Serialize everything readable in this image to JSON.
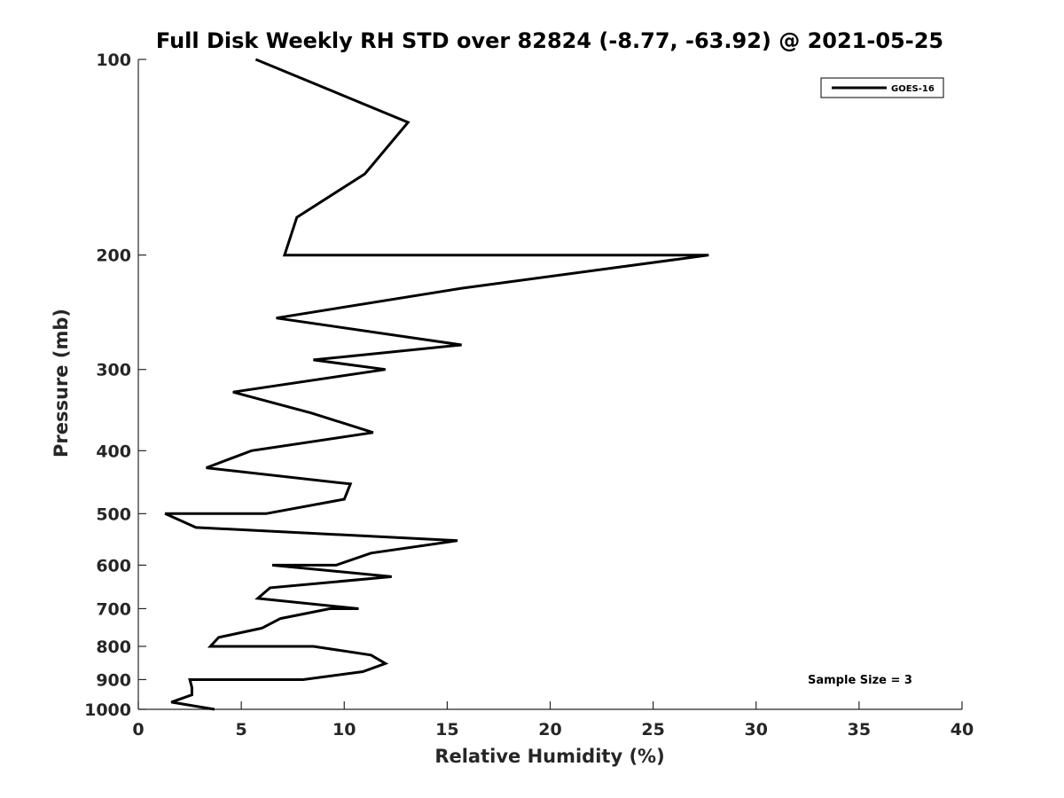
{
  "chart_data": {
    "type": "line",
    "title": "Full Disk Weekly RH STD over 82824 (-8.77, -63.92) @ 2021-05-25",
    "xlabel": "Relative Humidity (%)",
    "ylabel": "Pressure (mb)",
    "xlim": [
      0,
      40
    ],
    "ylim": [
      100,
      1000
    ],
    "yscale": "log",
    "y_reversed": true,
    "x_ticks": [
      0,
      5,
      10,
      15,
      20,
      25,
      30,
      35,
      40
    ],
    "y_ticks": [
      100,
      200,
      300,
      400,
      500,
      600,
      700,
      800,
      900,
      1000
    ],
    "grid": false,
    "legend_position": "top-right",
    "annotation": "Sample Size = 3",
    "series": [
      {
        "name": "GOES-16",
        "color": "#000000",
        "points": [
          [
            5.7,
            100
          ],
          [
            13.1,
            125
          ],
          [
            11.0,
            150
          ],
          [
            7.7,
            175
          ],
          [
            7.1,
            200
          ],
          [
            27.7,
            200
          ],
          [
            15.7,
            225
          ],
          [
            6.7,
            250
          ],
          [
            15.7,
            275
          ],
          [
            8.5,
            290
          ],
          [
            12.0,
            300
          ],
          [
            4.6,
            325
          ],
          [
            8.4,
            350
          ],
          [
            11.4,
            375
          ],
          [
            5.5,
            400
          ],
          [
            3.3,
            425
          ],
          [
            10.3,
            450
          ],
          [
            10.0,
            475
          ],
          [
            6.2,
            500
          ],
          [
            1.3,
            500
          ],
          [
            2.8,
            525
          ],
          [
            15.5,
            550
          ],
          [
            11.3,
            575
          ],
          [
            9.6,
            600
          ],
          [
            6.5,
            600
          ],
          [
            12.3,
            625
          ],
          [
            6.4,
            650
          ],
          [
            5.8,
            675
          ],
          [
            10.7,
            700
          ],
          [
            9.3,
            700
          ],
          [
            6.9,
            725
          ],
          [
            6.0,
            750
          ],
          [
            3.9,
            775
          ],
          [
            3.5,
            800
          ],
          [
            8.5,
            800
          ],
          [
            11.3,
            825
          ],
          [
            12.0,
            850
          ],
          [
            10.9,
            875
          ],
          [
            8.0,
            900
          ],
          [
            2.5,
            900
          ],
          [
            2.6,
            925
          ],
          [
            2.6,
            950
          ],
          [
            1.6,
            975
          ],
          [
            3.7,
            1000
          ]
        ]
      }
    ]
  }
}
